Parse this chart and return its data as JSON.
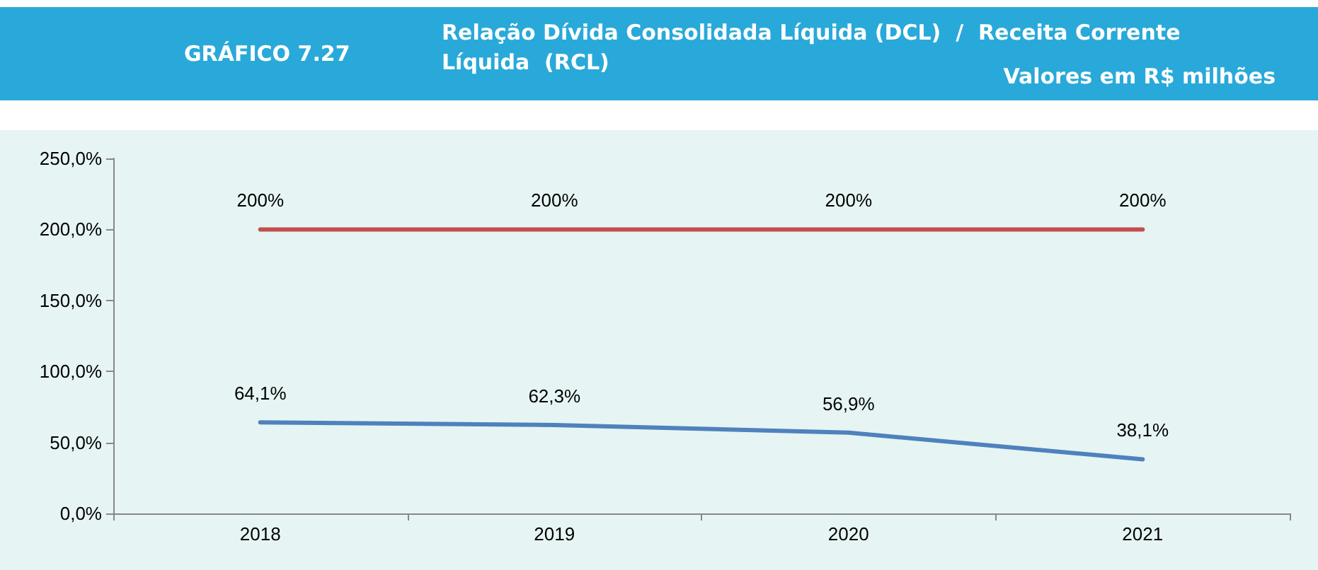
{
  "chart_data": {
    "type": "line",
    "title": "GRÁFICO 7.27",
    "subtitle": "Relação Dívida Consolidada Líquida (DCL)  /  Receita Corrente Líquida  (RCL)",
    "annotations": [
      "Valores em R$ milhões"
    ],
    "categories": [
      "2018",
      "2019",
      "2020",
      "2021"
    ],
    "series": [
      {
        "color": "#c0504d",
        "values": [
          200,
          200,
          200,
          200
        ],
        "value_labels": [
          "200%",
          "200%",
          "200%",
          "200%"
        ]
      },
      {
        "color": "#4f81bd",
        "values": [
          64.1,
          62.3,
          56.9,
          38.1
        ],
        "value_labels": [
          "64,1%",
          "62,3%",
          "56,9%",
          "38,1%"
        ]
      }
    ],
    "ylim": [
      0,
      250
    ],
    "yticks": [
      {
        "value": 0,
        "label": "0,0%"
      },
      {
        "value": 50,
        "label": "50,0%"
      },
      {
        "value": 100,
        "label": "100,0%"
      },
      {
        "value": 150,
        "label": "150,0%"
      },
      {
        "value": 200,
        "label": "200,0%"
      },
      {
        "value": 250,
        "label": "250,0%"
      }
    ],
    "grid": false,
    "marker": "none",
    "line_style": "solid"
  }
}
